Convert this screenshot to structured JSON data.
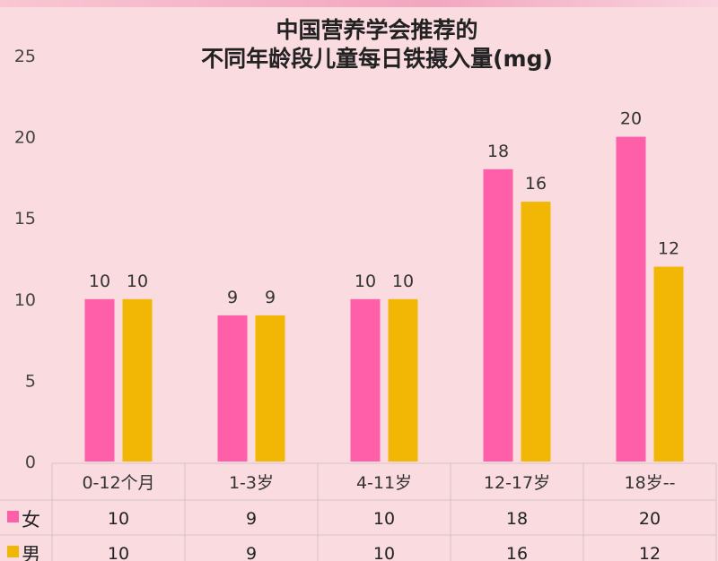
{
  "chart_data": {
    "type": "bar",
    "title": "中国营养学会推荐的",
    "subtitle": "不同年龄段儿童每日铁摄入量(mg)",
    "categories": [
      "0-12个月",
      "1-3岁",
      "4-11岁",
      "12-17岁",
      "18岁--"
    ],
    "series": [
      {
        "name": "女",
        "values": [
          10,
          9,
          10,
          18,
          20
        ],
        "color": "#ff5fa8"
      },
      {
        "name": "男",
        "values": [
          10,
          9,
          10,
          16,
          12
        ],
        "color": "#f2b705"
      }
    ],
    "ylim": [
      0,
      25
    ],
    "yticks": [
      "0",
      "5",
      "10",
      "15",
      "20",
      "25"
    ],
    "grid": false,
    "data_table": true
  }
}
